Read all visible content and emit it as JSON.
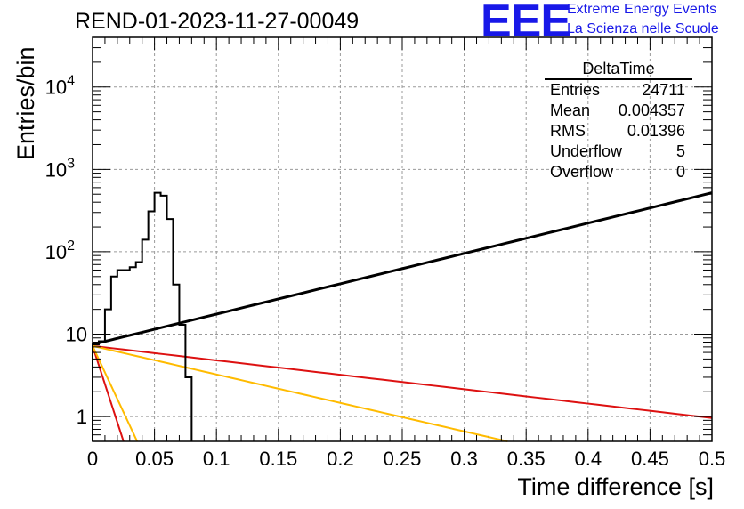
{
  "title": "REND-01-2023-11-27-00049",
  "logo": {
    "mark": "EEE",
    "line1": "Extreme Energy Events",
    "line2": "La Scienza nelle Scuole",
    "color": "#1818e8"
  },
  "stats_box": {
    "title": "DeltaTime",
    "rows": [
      {
        "label": "Entries",
        "value": "24711"
      },
      {
        "label": "Mean",
        "value": "0.004357"
      },
      {
        "label": "RMS",
        "value": "0.01396"
      },
      {
        "label": "Underflow",
        "value": "5"
      },
      {
        "label": "Overflow",
        "value": "0"
      }
    ]
  },
  "chart_data": {
    "type": "line",
    "xlabel": "Time difference [s]",
    "ylabel": "Entries/bin",
    "xlim": [
      0,
      0.5
    ],
    "ylim": [
      0.5,
      40000
    ],
    "yscale": "log",
    "grid": true,
    "xticks": [
      0,
      0.05,
      0.1,
      0.15,
      0.2,
      0.25,
      0.3,
      0.35,
      0.4,
      0.45,
      0.5
    ],
    "xtick_labels": [
      "0",
      "0.05",
      "0.1",
      "0.15",
      "0.2",
      "0.25",
      "0.3",
      "0.35",
      "0.4",
      "0.45",
      "0.5"
    ],
    "yticks": [
      1,
      10,
      100,
      1000,
      10000
    ],
    "ytick_labels": [
      "1",
      "10",
      "10^2",
      "10^3",
      "10^4"
    ],
    "histogram": {
      "name": "DeltaTime",
      "color": "#000000",
      "bin_edges": [
        0,
        0.005,
        0.01,
        0.015,
        0.02,
        0.025,
        0.03,
        0.035,
        0.04,
        0.045,
        0.05,
        0.055,
        0.06,
        0.065,
        0.07,
        0.075,
        0.08
      ],
      "counts": [
        7.5,
        8.2,
        20,
        50,
        60,
        60,
        65,
        75,
        140,
        310,
        520,
        480,
        250,
        40,
        13,
        3,
        0.3
      ]
    },
    "series": [
      {
        "color": "#000000",
        "x": [
          0,
          0.5
        ],
        "y": [
          7.5,
          520
        ]
      },
      {
        "color": "#dd1111",
        "x": [
          0,
          0.5
        ],
        "y": [
          7.2,
          0.96
        ]
      },
      {
        "color": "#ffbb00",
        "x": [
          0,
          0.335
        ],
        "y": [
          7.2,
          0.5
        ]
      },
      {
        "color": "#dd1111",
        "x": [
          0,
          0.025
        ],
        "y": [
          7.2,
          0.5
        ]
      },
      {
        "color": "#ffbb00",
        "x": [
          0,
          0.036
        ],
        "y": [
          7.2,
          0.5
        ]
      }
    ]
  }
}
